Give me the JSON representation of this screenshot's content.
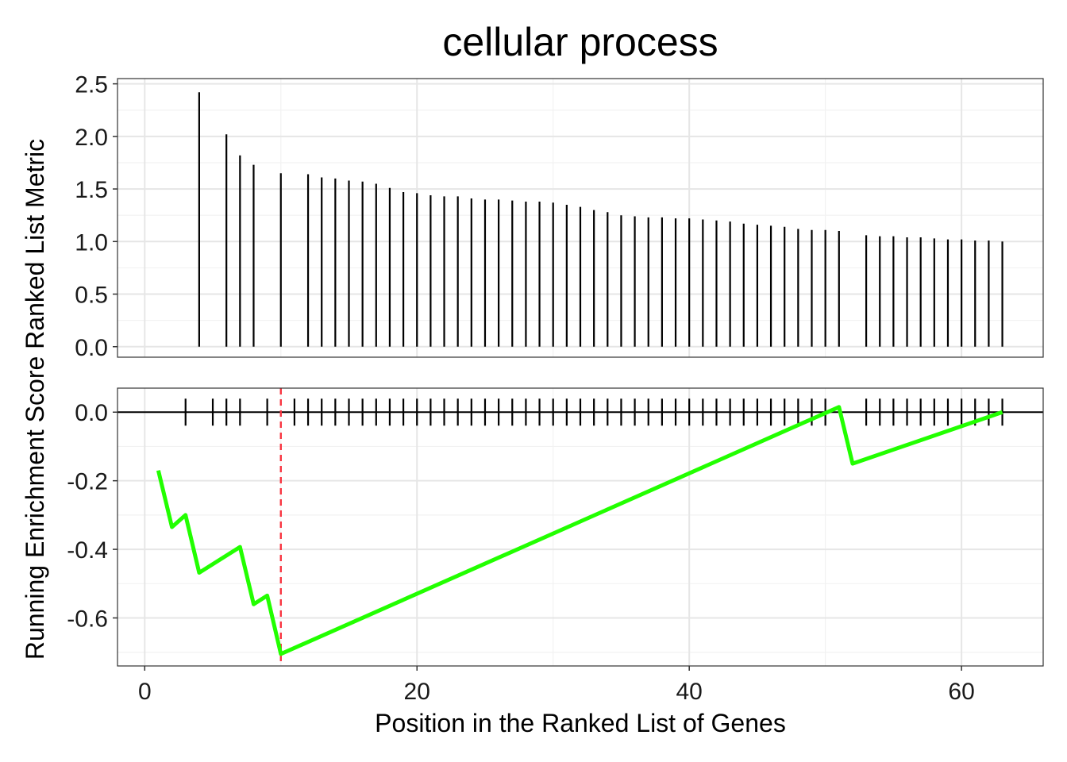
{
  "chart_data": {
    "type": "line",
    "title": "cellular process",
    "xlabel": "Position in the Ranked List of Genes",
    "ylabel": "Running Enrichment Score Ranked List Metric",
    "xlim": [
      -2,
      66
    ],
    "x_ticks": [
      0,
      20,
      40,
      60
    ],
    "x_tick_labels": [
      "0",
      "20",
      "40",
      "60"
    ],
    "grid": true,
    "top_panel": {
      "type": "bar",
      "ylim": [
        -0.1,
        2.55
      ],
      "y_ticks": [
        0.0,
        0.5,
        1.0,
        1.5,
        2.0,
        2.5
      ],
      "y_tick_labels": [
        "0.0",
        "0.5",
        "1.0",
        "1.5",
        "2.0",
        "2.5"
      ],
      "x": [
        4,
        6,
        7,
        8,
        10,
        12,
        13,
        14,
        15,
        16,
        17,
        18,
        19,
        20,
        21,
        22,
        23,
        24,
        25,
        26,
        27,
        28,
        29,
        30,
        31,
        32,
        33,
        34,
        35,
        36,
        37,
        38,
        39,
        40,
        41,
        42,
        43,
        44,
        45,
        46,
        47,
        48,
        49,
        50,
        51,
        53,
        54,
        55,
        56,
        57,
        58,
        59,
        60,
        61,
        62,
        63
      ],
      "values": [
        2.42,
        2.02,
        1.82,
        1.73,
        1.65,
        1.64,
        1.61,
        1.6,
        1.58,
        1.57,
        1.55,
        1.51,
        1.47,
        1.46,
        1.44,
        1.43,
        1.43,
        1.41,
        1.4,
        1.4,
        1.39,
        1.38,
        1.38,
        1.37,
        1.35,
        1.33,
        1.3,
        1.28,
        1.25,
        1.24,
        1.23,
        1.23,
        1.22,
        1.22,
        1.21,
        1.2,
        1.19,
        1.17,
        1.16,
        1.15,
        1.14,
        1.12,
        1.11,
        1.11,
        1.1,
        1.06,
        1.05,
        1.05,
        1.04,
        1.04,
        1.03,
        1.02,
        1.02,
        1.01,
        1.01,
        1.0
      ]
    },
    "bottom_panel": {
      "ylim": [
        -0.74,
        0.07
      ],
      "y_ticks": [
        0.0,
        -0.2,
        -0.4,
        -0.6
      ],
      "y_tick_labels": [
        "0.0",
        "-0.2",
        "-0.4",
        "-0.6"
      ],
      "zero_line": 0.0,
      "rug_x": [
        3,
        5,
        6,
        7,
        9,
        11,
        12,
        13,
        14,
        15,
        16,
        17,
        18,
        19,
        20,
        21,
        22,
        23,
        24,
        25,
        26,
        27,
        28,
        29,
        30,
        31,
        32,
        33,
        34,
        35,
        36,
        37,
        38,
        39,
        40,
        41,
        42,
        43,
        44,
        45,
        46,
        47,
        48,
        49,
        50,
        53,
        54,
        55,
        56,
        57,
        58,
        59,
        60,
        61,
        62,
        63
      ],
      "vline_x": 10,
      "vline_color": "#f8333f",
      "series": [
        {
          "color": "#22ff00",
          "x": [
            1,
            2,
            3,
            4,
            7,
            8,
            9,
            10,
            51,
            52,
            63
          ],
          "y": [
            -0.17,
            -0.335,
            -0.3,
            -0.468,
            -0.393,
            -0.56,
            -0.535,
            -0.705,
            0.015,
            -0.15,
            0.0
          ]
        }
      ]
    }
  }
}
